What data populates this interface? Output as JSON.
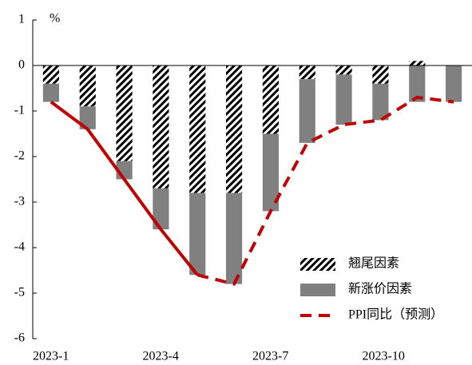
{
  "chart_data": {
    "type": "bar",
    "stacked": true,
    "y_label": "%",
    "categories": [
      "2023-1",
      null,
      null,
      "2023-4",
      null,
      null,
      "2023-7",
      null,
      null,
      "2023-10",
      null,
      null
    ],
    "ylim": [
      -6,
      1
    ],
    "yticks": [
      -6,
      -5,
      -4,
      -3,
      -2,
      -1,
      0,
      1
    ],
    "series": [
      {
        "name": "翘尾因素",
        "type": "bar",
        "color": "#000000",
        "pattern": "hatch",
        "values": [
          -0.4,
          -0.9,
          -2.1,
          -2.7,
          -2.8,
          -2.8,
          -1.5,
          -0.3,
          -0.2,
          -0.4,
          0.1,
          0
        ]
      },
      {
        "name": "新涨价因素",
        "type": "bar",
        "color": "#808080",
        "values": [
          -0.4,
          -0.5,
          -0.4,
          -0.9,
          -1.8,
          -2.0,
          -1.7,
          -1.4,
          -1.1,
          -0.8,
          -0.8,
          -0.8
        ]
      },
      {
        "type": "line",
        "color": "#c00000",
        "dashed": false,
        "values": [
          -0.8,
          -1.4,
          -2.5,
          -3.6,
          -4.6,
          null,
          null,
          null,
          null,
          null,
          null,
          null
        ]
      },
      {
        "name": "PPI同比（预测）",
        "type": "line",
        "color": "#c00000",
        "dashed": true,
        "values": [
          null,
          null,
          null,
          null,
          -4.6,
          -4.8,
          -3.2,
          -1.7,
          -1.3,
          -1.2,
          -0.7,
          -0.8
        ]
      }
    ]
  }
}
